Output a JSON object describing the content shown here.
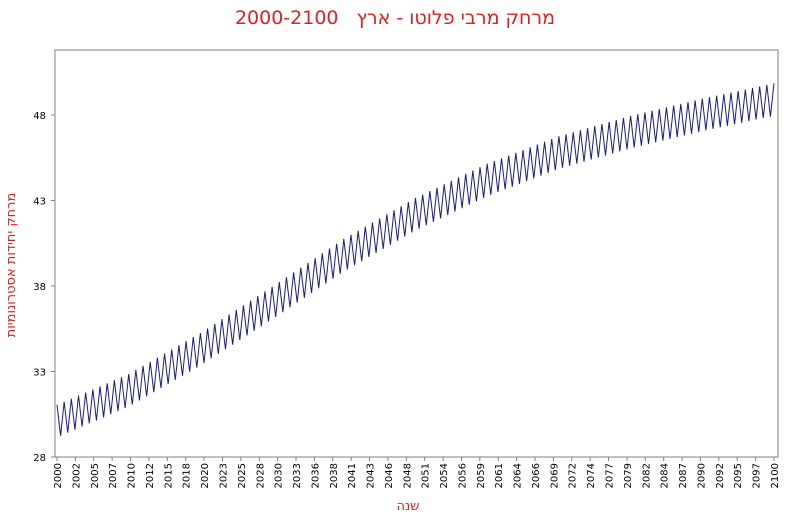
{
  "chart_data": {
    "type": "line",
    "title": "מרחק מרבי פלוטו - ארץ   2000-2100",
    "x_label": "שנה",
    "y_label": "מרחק יחידות אסטרונומיות",
    "color": "#1a1a8c",
    "xlim": [
      2000,
      2100
    ],
    "ylim": [
      28,
      51.8
    ],
    "yticks": [
      28,
      33,
      38,
      43,
      48
    ],
    "xticks": [
      2000,
      {
        "value": 2002.56,
        "label": "2002"
      },
      {
        "value": 2005.13,
        "label": "2005"
      },
      {
        "value": 2007.69,
        "label": "2007"
      },
      {
        "value": 2010.26,
        "label": "2010"
      },
      {
        "value": 2012.82,
        "label": "2012"
      },
      {
        "value": 2015.38,
        "label": "2015"
      },
      {
        "value": 2017.95,
        "label": "2018"
      },
      {
        "value": 2020.51,
        "label": "2020"
      },
      {
        "value": 2023.08,
        "label": "2023"
      },
      {
        "value": 2025.64,
        "label": "2025"
      },
      {
        "value": 2028.21,
        "label": "2028"
      },
      {
        "value": 2030.77,
        "label": "2030"
      },
      {
        "value": 2033.33,
        "label": "2033"
      },
      {
        "value": 2035.9,
        "label": "2036"
      },
      {
        "value": 2038.46,
        "label": "2038"
      },
      {
        "value": 2041.03,
        "label": "2041"
      },
      {
        "value": 2043.59,
        "label": "2043"
      },
      {
        "value": 2046.15,
        "label": "2046"
      },
      {
        "value": 2048.72,
        "label": "2048"
      },
      {
        "value": 2051.28,
        "label": "2051"
      },
      {
        "value": 2053.85,
        "label": "2054"
      },
      {
        "value": 2056.41,
        "label": "2056"
      },
      {
        "value": 2058.97,
        "label": "2059"
      },
      {
        "value": 2061.54,
        "label": "2061"
      },
      {
        "value": 2064.1,
        "label": "2064"
      },
      {
        "value": 2066.67,
        "label": "2066"
      },
      {
        "value": 2069.23,
        "label": "2069"
      },
      {
        "value": 2071.79,
        "label": "2072"
      },
      {
        "value": 2074.36,
        "label": "2074"
      },
      {
        "value": 2076.92,
        "label": "2077"
      },
      {
        "value": 2079.49,
        "label": "2079"
      },
      {
        "value": 2082.05,
        "label": "2082"
      },
      {
        "value": 2084.62,
        "label": "2084"
      },
      {
        "value": 2087.18,
        "label": "2087"
      },
      {
        "value": 2089.74,
        "label": "2090"
      },
      {
        "value": 2092.31,
        "label": "2092"
      },
      {
        "value": 2094.87,
        "label": "2095"
      },
      {
        "value": 2097.44,
        "label": "2097"
      },
      2100
    ],
    "x": [
      2000,
      2000.5,
      2001,
      2001.5,
      2002,
      2002.5,
      2003,
      2003.5,
      2004,
      2004.5,
      2005,
      2005.5,
      2006,
      2006.5,
      2007,
      2007.5,
      2008,
      2008.5,
      2009,
      2009.5,
      2010,
      2010.5,
      2011,
      2011.5,
      2012,
      2012.5,
      2013,
      2013.5,
      2014,
      2014.5,
      2015,
      2015.5,
      2016,
      2016.5,
      2017,
      2017.5,
      2018,
      2018.5,
      2019,
      2019.5,
      2020,
      2020.5,
      2021,
      2021.5,
      2022,
      2022.5,
      2023,
      2023.5,
      2024,
      2024.5,
      2025,
      2025.5,
      2026,
      2026.5,
      2027,
      2027.5,
      2028,
      2028.5,
      2029,
      2029.5,
      2030,
      2030.5,
      2031,
      2031.5,
      2032,
      2032.5,
      2033,
      2033.5,
      2034,
      2034.5,
      2035,
      2035.5,
      2036,
      2036.5,
      2037,
      2037.5,
      2038,
      2038.5,
      2039,
      2039.5,
      2040,
      2040.5,
      2041,
      2041.5,
      2042,
      2042.5,
      2043,
      2043.5,
      2044,
      2044.5,
      2045,
      2045.5,
      2046,
      2046.5,
      2047,
      2047.5,
      2048,
      2048.5,
      2049,
      2049.5,
      2050,
      2050.5,
      2051,
      2051.5,
      2052,
      2052.5,
      2053,
      2053.5,
      2054,
      2054.5,
      2055,
      2055.5,
      2056,
      2056.5,
      2057,
      2057.5,
      2058,
      2058.5,
      2059,
      2059.5,
      2060,
      2060.5,
      2061,
      2061.5,
      2062,
      2062.5,
      2063,
      2063.5,
      2064,
      2064.5,
      2065,
      2065.5,
      2066,
      2066.5,
      2067,
      2067.5,
      2068,
      2068.5,
      2069,
      2069.5,
      2070,
      2070.5,
      2071,
      2071.5,
      2072,
      2072.5,
      2073,
      2073.5,
      2074,
      2074.5,
      2075,
      2075.5,
      2076,
      2076.5,
      2077,
      2077.5,
      2078,
      2078.5,
      2079,
      2079.5,
      2080,
      2080.5,
      2081,
      2081.5,
      2082,
      2082.5,
      2083,
      2083.5,
      2084,
      2084.5,
      2085,
      2085.5,
      2086,
      2086.5,
      2087,
      2087.5,
      2088,
      2088.5,
      2089,
      2089.5,
      2090,
      2090.5,
      2091,
      2091.5,
      2092,
      2092.5,
      2093,
      2093.5,
      2094,
      2094.5,
      2095,
      2095.5,
      2096,
      2096.5,
      2097,
      2097.5,
      2098,
      2098.5,
      2099,
      2099.5,
      2100
    ],
    "values": [
      31.05,
      29.24,
      31.23,
      29.42,
      31.41,
      29.6,
      31.59,
      29.78,
      31.77,
      29.96,
      31.95,
      30.14,
      32.13,
      30.32,
      32.31,
      30.5,
      32.49,
      30.68,
      32.67,
      30.86,
      32.85,
      31.07,
      33.09,
      31.31,
      33.33,
      31.55,
      33.57,
      31.79,
      33.81,
      32.03,
      34.05,
      32.27,
      34.29,
      32.51,
      34.53,
      32.75,
      34.77,
      32.99,
      35.01,
      33.23,
      35.25,
      33.49,
      35.52,
      33.76,
      35.79,
      34.03,
      36.06,
      34.3,
      36.33,
      34.57,
      36.6,
      34.84,
      36.87,
      35.11,
      37.14,
      35.38,
      37.41,
      35.65,
      37.68,
      35.92,
      37.95,
      36.19,
      38.23,
      36.47,
      38.51,
      36.75,
      38.79,
      37.03,
      39.07,
      37.31,
      39.35,
      37.59,
      39.63,
      37.87,
      39.91,
      38.15,
      40.19,
      38.43,
      40.47,
      38.71,
      40.75,
      38.97,
      40.99,
      39.21,
      41.23,
      39.45,
      41.47,
      39.69,
      41.71,
      39.93,
      41.95,
      40.17,
      42.19,
      40.41,
      42.43,
      40.65,
      42.67,
      40.89,
      42.91,
      41.13,
      43.15,
      41.35,
      43.35,
      41.55,
      43.55,
      41.75,
      43.75,
      41.95,
      43.95,
      42.15,
      44.15,
      42.35,
      44.35,
      42.55,
      44.55,
      42.75,
      44.75,
      42.95,
      44.95,
      43.15,
      45.15,
      43.33,
      45.31,
      43.49,
      45.47,
      43.65,
      45.63,
      43.81,
      45.79,
      43.97,
      45.95,
      44.13,
      46.11,
      44.29,
      46.27,
      44.45,
      46.43,
      44.61,
      46.59,
      44.77,
      46.75,
      44.91,
      46.87,
      45.03,
      46.99,
      45.15,
      47.11,
      45.27,
      47.23,
      45.39,
      47.35,
      45.51,
      47.47,
      45.63,
      47.59,
      45.75,
      47.71,
      45.87,
      47.83,
      45.99,
      47.95,
      46.1,
      48.05,
      46.2,
      48.15,
      46.3,
      48.25,
      46.4,
      48.35,
      46.5,
      48.45,
      46.6,
      48.55,
      46.7,
      48.65,
      46.8,
      48.75,
      46.9,
      48.85,
      47,
      48.95,
      47.1,
      49.04,
      47.19,
      49.13,
      47.28,
      49.22,
      47.37,
      49.31,
      47.46,
      49.4,
      47.55,
      49.49,
      47.64,
      49.58,
      47.73,
      49.67,
      47.82,
      49.76,
      47.91,
      49.85
    ]
  }
}
